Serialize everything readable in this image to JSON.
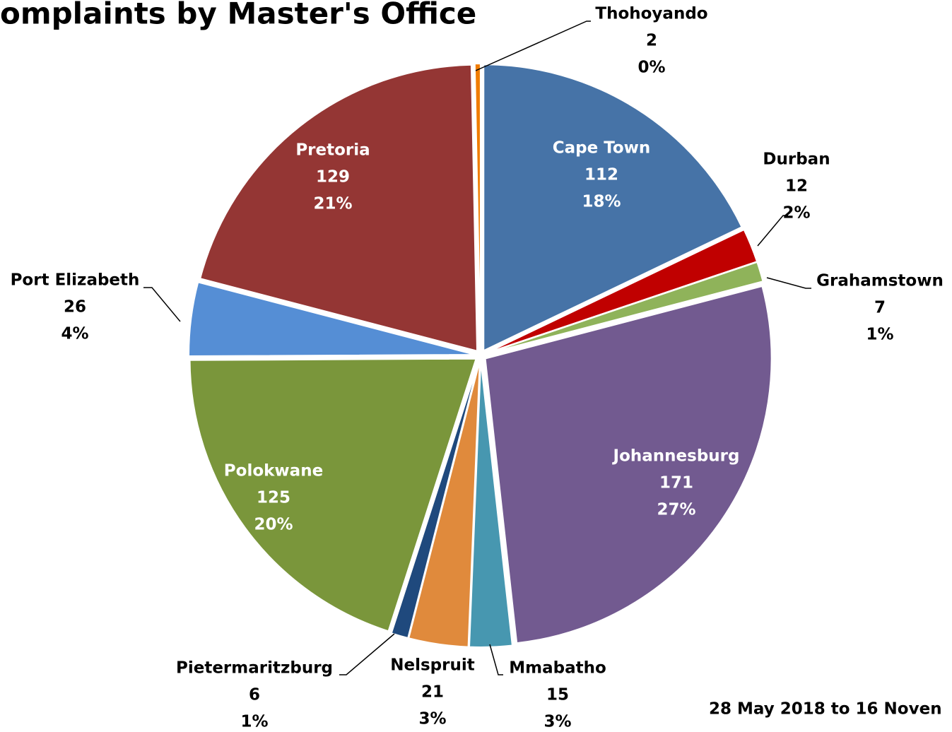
{
  "chart_data": {
    "type": "pie",
    "title": "omplaints by Master's Office",
    "footnote": "28 May 2018 to 16 Noven",
    "categories": [
      "Cape Town",
      "Durban",
      "Grahamstown",
      "Johannesburg",
      "Mmabatho",
      "Nelspruit",
      "Pietermaritzburg",
      "Polokwane",
      "Port Elizabeth",
      "Pretoria",
      "Thohoyando"
    ],
    "values": [
      112,
      12,
      7,
      171,
      15,
      21,
      6,
      125,
      26,
      129,
      2
    ],
    "percent_labels": [
      "18%",
      "2%",
      "1%",
      "27%",
      "3%",
      "3%",
      "1%",
      "20%",
      "4%",
      "21%",
      "0%"
    ],
    "colors": [
      "#4673a7",
      "#c00000",
      "#8fb35a",
      "#725a90",
      "#4797b0",
      "#e08a3c",
      "#1f497d",
      "#7a963b",
      "#558ed5",
      "#943634",
      "#f07c00"
    ]
  }
}
